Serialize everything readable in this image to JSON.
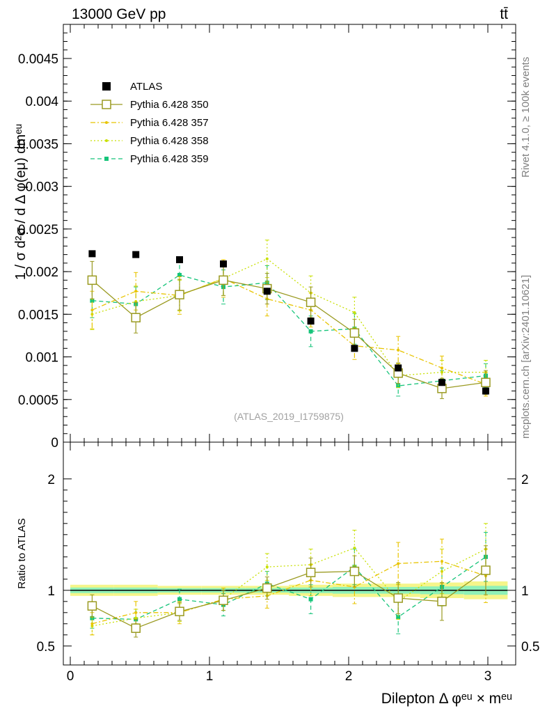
{
  "header": {
    "left": "13000 GeV pp",
    "right": "tt̄"
  },
  "side_labels": {
    "rivet": "Rivet 4.1.0, ≥ 100k events",
    "mcplots": "mcplots.cern.ch [arXiv:2401.10621]"
  },
  "watermark": "(ATLAS_2019_I1759875)",
  "axes": {
    "ylabel_main": "1 / σ  d²σ / d Δ φ(eμ) dmᵉᵘ",
    "ylabel_ratio": "Ratio to ATLAS",
    "xlabel": "Dilepton Δ φᵉᵘ × mᵉᵘ"
  },
  "colors": {
    "data": "#000000",
    "p350": "#9a9a20",
    "p357": "#e8c400",
    "p358": "#c8e000",
    "p359": "#16c47a",
    "band_outer": "#f5f58a",
    "band_inner": "#8ef0b8"
  },
  "legend": [
    {
      "key": "ATLAS",
      "label": "ATLAS"
    },
    {
      "key": "p350",
      "label": "Pythia 6.428 350"
    },
    {
      "key": "p357",
      "label": "Pythia 6.428 357"
    },
    {
      "key": "p358",
      "label": "Pythia 6.428 358"
    },
    {
      "key": "p359",
      "label": "Pythia 6.428 359"
    }
  ],
  "chart_data": {
    "type": "line",
    "xlim": [
      -0.05,
      3.2
    ],
    "main": {
      "ylim": [
        0,
        0.0049
      ],
      "yticks": [
        0,
        0.0005,
        0.001,
        0.0015,
        0.002,
        0.0025,
        0.003,
        0.0035,
        0.004,
        0.0045
      ],
      "ytick_labels": [
        "0",
        "0.0005",
        "0.001",
        "0.0015",
        "0.002",
        "0.0025",
        "0.003",
        "0.0035",
        "0.004",
        "0.0045"
      ]
    },
    "ratio": {
      "ylim": [
        0.33,
        2.33
      ],
      "yticks": [
        0.5,
        1,
        2
      ],
      "ytick_labels": [
        "0.5",
        "1",
        "2"
      ]
    },
    "xticks": [
      0,
      1,
      2,
      3
    ],
    "xtick_labels": [
      "0",
      "1",
      "2",
      "3"
    ],
    "x": [
      0.157,
      0.471,
      0.785,
      1.1,
      1.414,
      1.728,
      2.042,
      2.356,
      2.67,
      2.985
    ],
    "xerr": 0.157,
    "atlas": {
      "values": [
        0.00221,
        0.0022,
        0.00214,
        0.00209,
        0.00177,
        0.00142,
        0.0011,
        0.00087,
        0.0007,
        0.0006
      ],
      "errors": [
        3e-05,
        3e-05,
        4e-05,
        4e-05,
        4e-05,
        4e-05,
        4e-05,
        4e-05,
        4e-05,
        4e-05
      ]
    },
    "series": [
      {
        "key": "p350",
        "name": "Pythia 6.428 350",
        "style": "solid",
        "marker": "square-open",
        "values": [
          0.0019,
          0.00146,
          0.00173,
          0.0019,
          0.0018,
          0.00164,
          0.00128,
          0.00081,
          0.00063,
          0.0007
        ],
        "errors": [
          0.00022,
          0.00018,
          0.00018,
          0.00018,
          0.00018,
          0.00018,
          0.00016,
          0.00012,
          0.00012,
          0.00014
        ],
        "ratio": [
          0.86,
          0.66,
          0.81,
          0.91,
          1.02,
          1.16,
          1.17,
          0.93,
          0.9,
          1.18
        ],
        "ratio_err": [
          0.1,
          0.08,
          0.08,
          0.09,
          0.1,
          0.13,
          0.14,
          0.14,
          0.17,
          0.22
        ]
      },
      {
        "key": "p357",
        "name": "Pythia 6.428 357",
        "style": "dashdot",
        "marker": "dot",
        "values": [
          0.00155,
          0.00177,
          0.00172,
          0.00192,
          0.00168,
          0.00155,
          0.00113,
          0.00108,
          0.00087,
          0.00068
        ],
        "errors": [
          0.00022,
          0.00022,
          0.00022,
          0.00022,
          0.0002,
          0.0002,
          0.00016,
          0.00016,
          0.00014,
          0.00014
        ],
        "ratio": [
          0.7,
          0.8,
          0.8,
          0.92,
          0.95,
          1.09,
          1.03,
          1.24,
          1.26,
          1.13
        ],
        "ratio_err": [
          0.1,
          0.1,
          0.1,
          0.1,
          0.11,
          0.14,
          0.15,
          0.19,
          0.2,
          0.24
        ]
      },
      {
        "key": "p358",
        "name": "Pythia 6.428 358",
        "style": "dotted",
        "marker": "dot",
        "values": [
          0.0015,
          0.00165,
          0.00172,
          0.00192,
          0.00215,
          0.00175,
          0.00152,
          0.00078,
          0.00082,
          0.00082
        ],
        "errors": [
          0.00018,
          0.00018,
          0.00018,
          0.0002,
          0.00022,
          0.0002,
          0.00018,
          0.00014,
          0.00014,
          0.00014
        ],
        "ratio": [
          0.68,
          0.75,
          0.8,
          0.92,
          1.21,
          1.23,
          1.38,
          0.9,
          1.17,
          1.37
        ],
        "ratio_err": [
          0.08,
          0.08,
          0.08,
          0.1,
          0.12,
          0.14,
          0.16,
          0.16,
          0.2,
          0.23
        ]
      },
      {
        "key": "p359",
        "name": "Pythia 6.428 359",
        "style": "dashed",
        "marker": "square-filled",
        "values": [
          0.00166,
          0.00162,
          0.00196,
          0.00182,
          0.00187,
          0.0013,
          0.00133,
          0.00066,
          0.00072,
          0.00078
        ],
        "errors": [
          0.0002,
          0.0002,
          0.0002,
          0.0002,
          0.0002,
          0.00018,
          0.00018,
          0.00012,
          0.00012,
          0.00014
        ],
        "ratio": [
          0.75,
          0.74,
          0.92,
          0.87,
          1.06,
          0.92,
          1.21,
          0.76,
          1.03,
          1.3
        ],
        "ratio_err": [
          0.09,
          0.09,
          0.09,
          0.1,
          0.11,
          0.13,
          0.16,
          0.15,
          0.17,
          0.22
        ]
      }
    ],
    "band": {
      "outer": [
        0.05,
        0.05,
        0.04,
        0.04,
        0.04,
        0.05,
        0.06,
        0.06,
        0.07,
        0.08
      ],
      "inner": [
        0.025,
        0.025,
        0.02,
        0.02,
        0.02,
        0.025,
        0.03,
        0.03,
        0.035,
        0.04
      ]
    }
  }
}
